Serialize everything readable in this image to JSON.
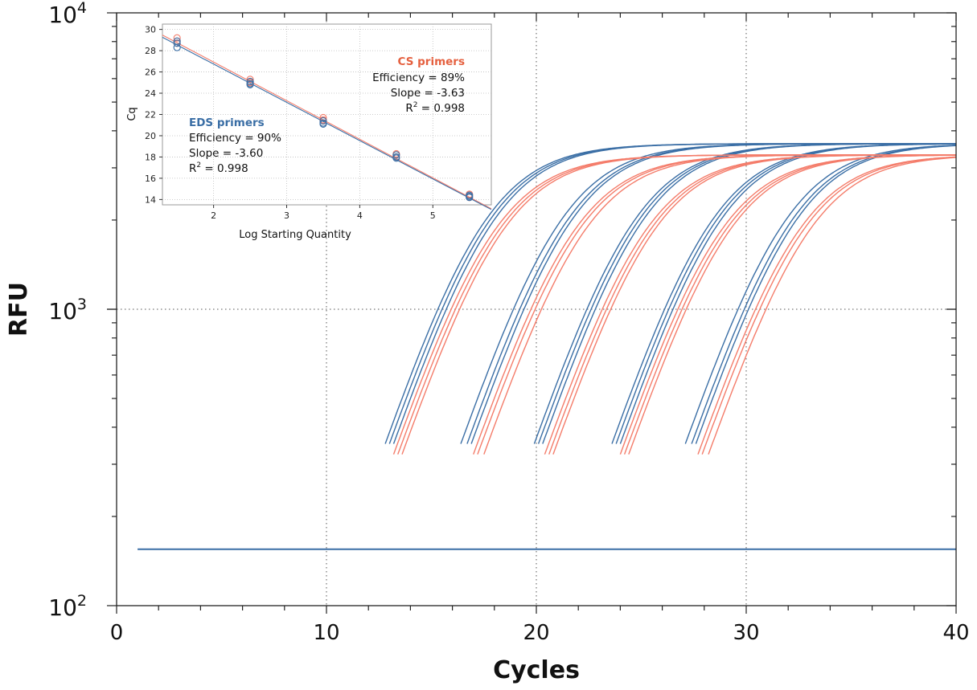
{
  "chart_data": [
    {
      "type": "line",
      "xlabel": "Cycles",
      "ylabel": "RFU",
      "xlim": [
        0,
        40
      ],
      "ylim": [
        100,
        10000
      ],
      "yscale": "log",
      "xticks": [
        0,
        10,
        20,
        30,
        40
      ],
      "xtick_labels": [
        "0",
        "10",
        "20",
        "30",
        "40"
      ],
      "yticks": [
        100,
        1000,
        10000
      ],
      "ytick_labels": [
        {
          "base": "10",
          "exp": "2"
        },
        {
          "base": "10",
          "exp": "3"
        },
        {
          "base": "10",
          "exp": "4"
        }
      ],
      "grid": "dotted at major ticks",
      "threshold": {
        "y": 155,
        "x_start": 1,
        "x_end": 40,
        "color": "#3a6ea5"
      },
      "curve_model": {
        "type": "logistic",
        "baseline": 20,
        "max_eds": 3600,
        "max_cs": 3300,
        "rate": 0.52,
        "midpoint_offset": 3.2
      },
      "series": [
        {
          "group": "EDS primers",
          "color": "#3a6ea5",
          "cq": [
            14.0,
            14.2,
            14.4,
            17.6,
            17.9,
            18.1,
            21.1,
            21.3,
            21.5,
            24.8,
            25.0,
            25.2,
            28.3,
            28.6,
            28.8
          ]
        },
        {
          "group": "CS primers",
          "color": "#f47c6a",
          "cq": [
            14.4,
            14.6,
            14.8,
            18.2,
            18.4,
            18.7,
            21.6,
            21.8,
            22.0,
            25.2,
            25.4,
            25.6,
            28.9,
            29.1,
            29.4
          ]
        }
      ]
    },
    {
      "type": "scatter",
      "xlabel": "Log Starting Quantity",
      "ylabel": "Cq",
      "xlim": [
        1.3,
        5.8
      ],
      "ylim": [
        13.5,
        30.5
      ],
      "xticks": [
        2,
        3,
        4,
        5
      ],
      "yticks": [
        14,
        16,
        18,
        20,
        22,
        24,
        26,
        28,
        30
      ],
      "grid": "dotted",
      "series": [
        {
          "name": "CS primers",
          "color": "#f47c6a",
          "x": [
            1.5,
            1.5,
            1.5,
            2.5,
            2.5,
            2.5,
            3.5,
            3.5,
            3.5,
            4.5,
            4.5,
            4.5,
            5.5,
            5.5,
            5.5
          ],
          "y": [
            29.2,
            28.9,
            28.7,
            25.3,
            25.1,
            25.0,
            21.7,
            21.5,
            21.4,
            18.3,
            18.2,
            18.0,
            14.5,
            14.4,
            14.2
          ],
          "fit": {
            "slope": -3.63,
            "x0": 1.3,
            "y0": 29.47,
            "x1": 5.8,
            "y1": 13.13
          }
        },
        {
          "name": "EDS primers",
          "color": "#3a6ea5",
          "x": [
            1.5,
            1.5,
            1.5,
            2.5,
            2.5,
            2.5,
            3.5,
            3.5,
            3.5,
            4.5,
            4.5,
            4.5,
            5.5,
            5.5,
            5.5
          ],
          "y": [
            28.9,
            28.7,
            28.3,
            25.1,
            24.9,
            24.8,
            21.4,
            21.2,
            21.1,
            18.2,
            18.0,
            17.9,
            14.4,
            14.3,
            14.2
          ],
          "fit": {
            "slope": -3.6,
            "x0": 1.3,
            "y0": 29.26,
            "x1": 5.8,
            "y1": 13.06
          }
        }
      ],
      "annotations": {
        "cs": {
          "title": "CS primers",
          "efficiency": "Efficiency = 89%",
          "slope": "Slope = -3.63",
          "r2_prefix": "R",
          "r2_sup": "2",
          "r2_value": " = 0.998",
          "color": "#e5603f"
        },
        "eds": {
          "title": "EDS primers",
          "efficiency": "Efficiency = 90%",
          "slope": "Slope = -3.60",
          "r2_prefix": "R",
          "r2_sup": "2",
          "r2_value": " = 0.998",
          "color": "#3a6ea5"
        }
      }
    }
  ]
}
